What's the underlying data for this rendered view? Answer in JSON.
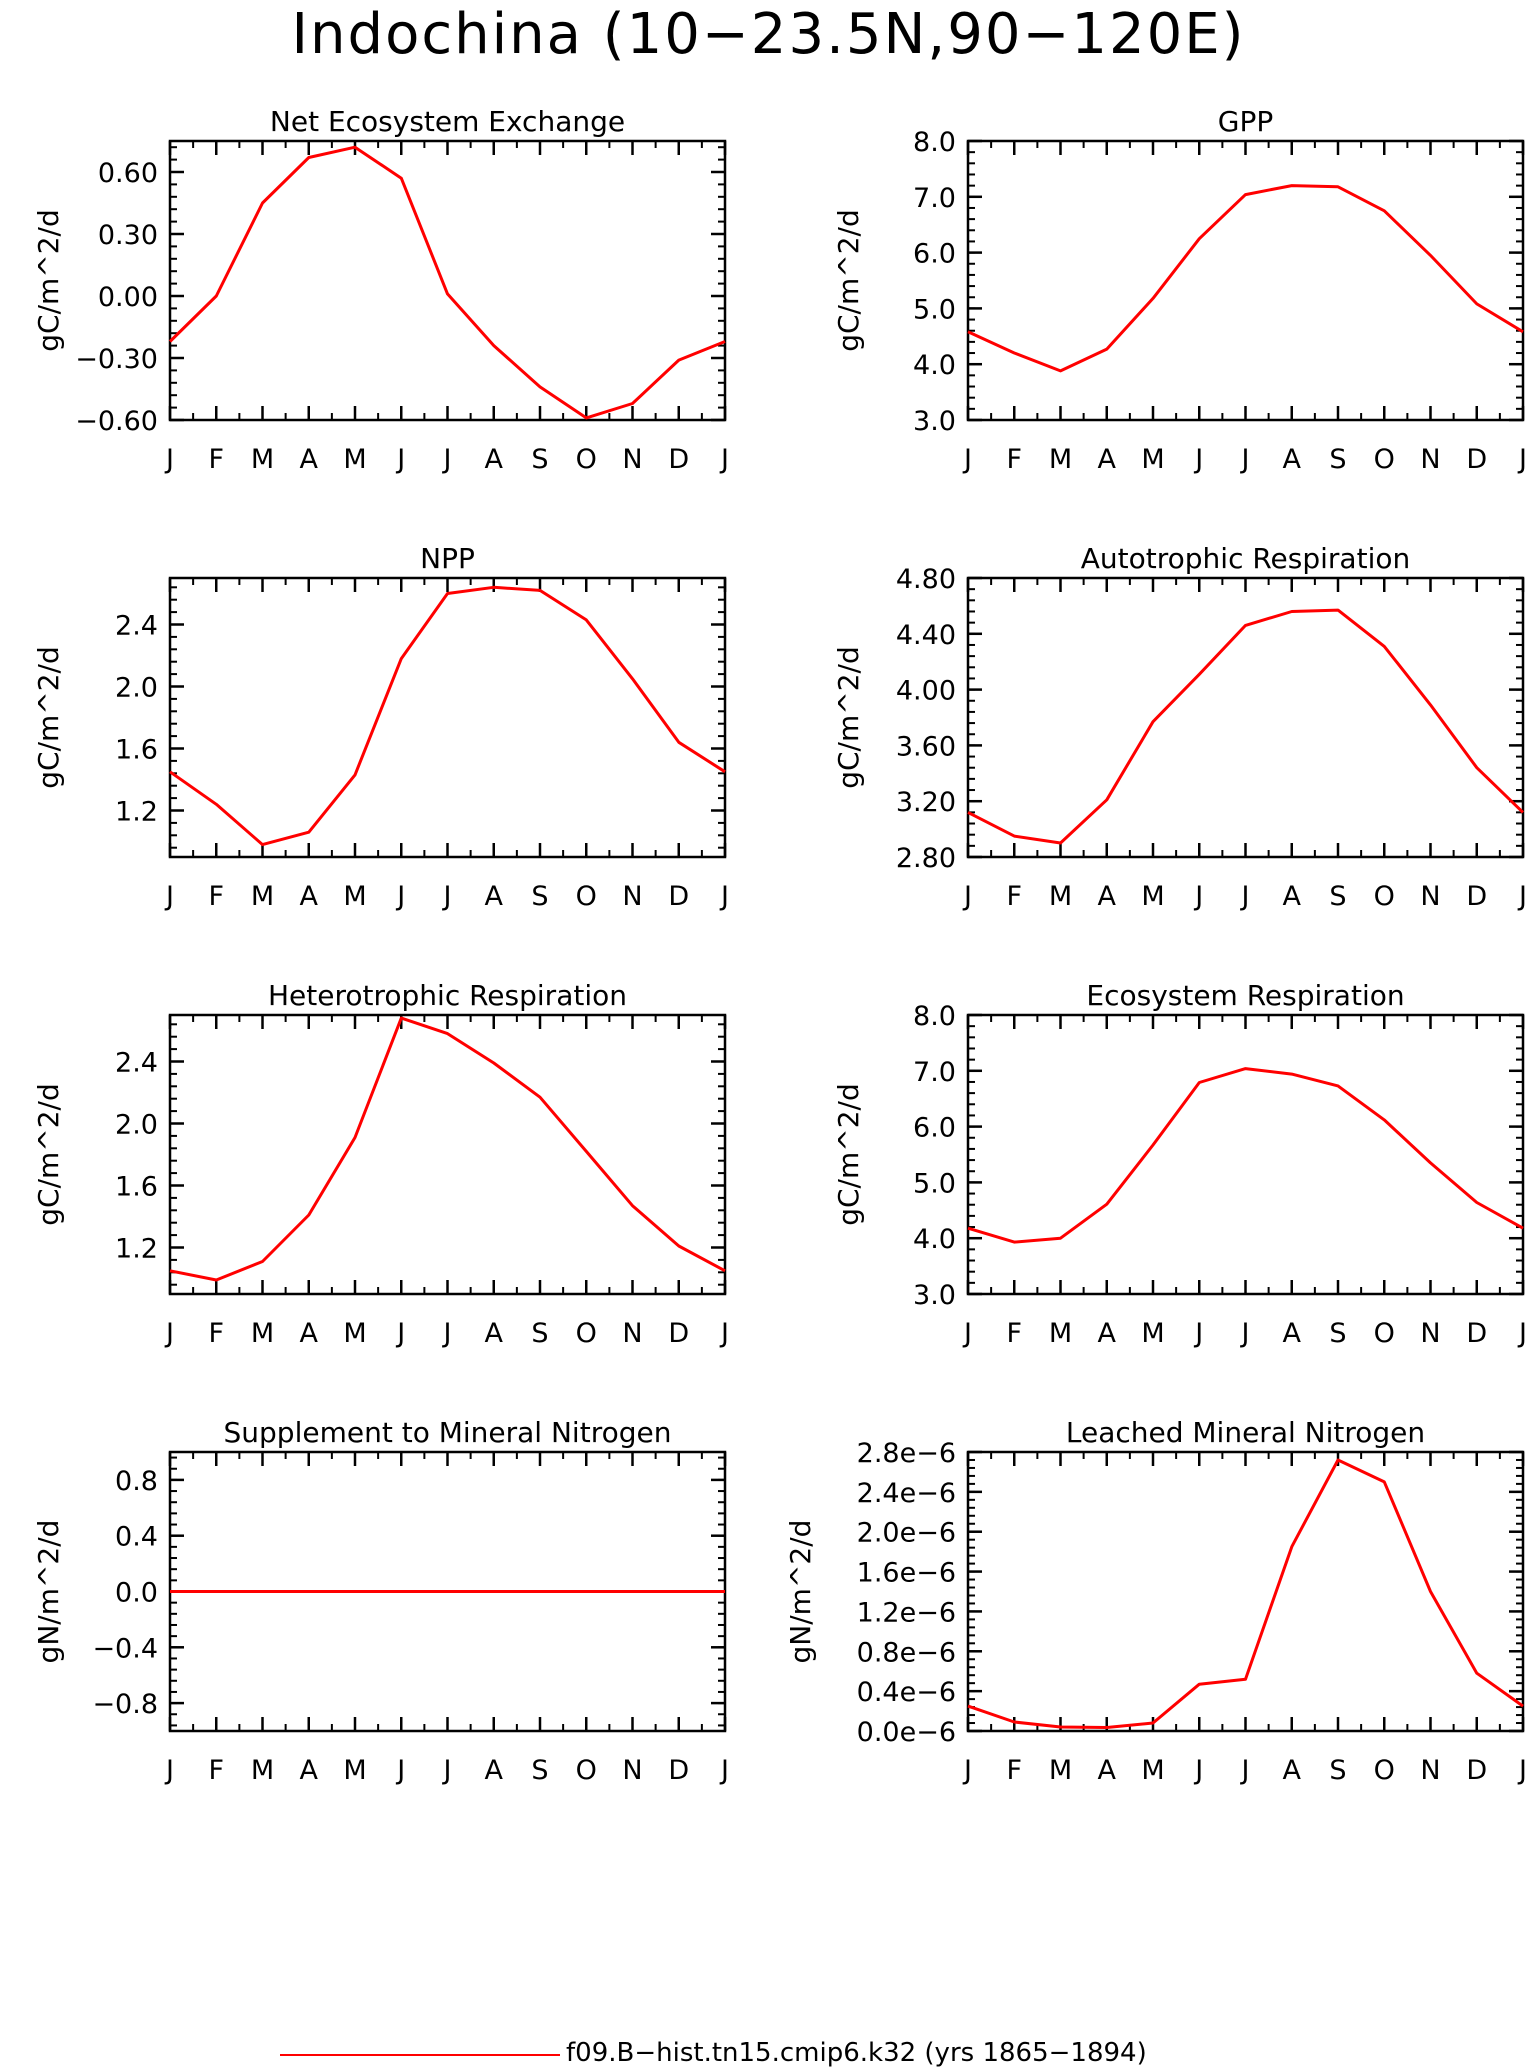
{
  "title": "Indochina (10−23.5N,90−120E)",
  "legend": {
    "label": "f09.B−hist.tn15.cmip6.k32 (yrs 1865−1894)",
    "color": "#ff0000"
  },
  "chart_data": [
    {
      "type": "line",
      "title": "Net Ecosystem Exchange",
      "ylabel": "gC/m^2/d",
      "categories": [
        "J",
        "F",
        "M",
        "A",
        "M",
        "J",
        "J",
        "A",
        "S",
        "O",
        "N",
        "D",
        "J"
      ],
      "ylim": [
        -0.6,
        0.75
      ],
      "yticks": [
        -0.6,
        -0.3,
        0.0,
        0.3,
        0.6
      ],
      "ytick_labels": [
        "−0.60",
        "−0.30",
        "0.00",
        "0.30",
        "0.60"
      ],
      "series": [
        {
          "values": [
            -0.22,
            -0.0,
            0.45,
            0.67,
            0.72,
            0.57,
            0.01,
            -0.24,
            -0.44,
            -0.59,
            -0.52,
            -0.31,
            -0.22
          ]
        }
      ]
    },
    {
      "type": "line",
      "title": "GPP",
      "ylabel": "gC/m^2/d",
      "categories": [
        "J",
        "F",
        "M",
        "A",
        "M",
        "J",
        "J",
        "A",
        "S",
        "O",
        "N",
        "D",
        "J"
      ],
      "ylim": [
        3.0,
        8.0
      ],
      "yticks": [
        3.0,
        4.0,
        5.0,
        6.0,
        7.0,
        8.0
      ],
      "ytick_labels": [
        "3.0",
        "4.0",
        "5.0",
        "6.0",
        "7.0",
        "8.0"
      ],
      "series": [
        {
          "values": [
            4.58,
            4.2,
            3.88,
            4.27,
            5.18,
            6.25,
            7.04,
            7.2,
            7.18,
            6.75,
            5.95,
            5.08,
            4.58
          ]
        }
      ]
    },
    {
      "type": "line",
      "title": "NPP",
      "ylabel": "gC/m^2/d",
      "categories": [
        "J",
        "F",
        "M",
        "A",
        "M",
        "J",
        "J",
        "A",
        "S",
        "O",
        "N",
        "D",
        "J"
      ],
      "ylim": [
        0.9,
        2.7
      ],
      "yticks": [
        1.2,
        1.6,
        2.0,
        2.4
      ],
      "ytick_labels": [
        "1.2",
        "1.6",
        "2.0",
        "2.4"
      ],
      "series": [
        {
          "values": [
            1.45,
            1.24,
            0.98,
            1.06,
            1.43,
            2.18,
            2.6,
            2.64,
            2.62,
            2.43,
            2.05,
            1.64,
            1.45
          ]
        }
      ]
    },
    {
      "type": "line",
      "title": "Autotrophic Respiration",
      "ylabel": "gC/m^2/d",
      "categories": [
        "J",
        "F",
        "M",
        "A",
        "M",
        "J",
        "J",
        "A",
        "S",
        "O",
        "N",
        "D",
        "J"
      ],
      "ylim": [
        2.8,
        4.8
      ],
      "yticks": [
        2.8,
        3.2,
        3.6,
        4.0,
        4.4,
        4.8
      ],
      "ytick_labels": [
        "2.80",
        "3.20",
        "3.60",
        "4.00",
        "4.40",
        "4.80"
      ],
      "series": [
        {
          "values": [
            3.12,
            2.95,
            2.9,
            3.21,
            3.77,
            4.11,
            4.46,
            4.56,
            4.57,
            4.31,
            3.89,
            3.44,
            3.12
          ]
        }
      ]
    },
    {
      "type": "line",
      "title": "Heterotrophic Respiration",
      "ylabel": "gC/m^2/d",
      "categories": [
        "J",
        "F",
        "M",
        "A",
        "M",
        "J",
        "J",
        "A",
        "S",
        "O",
        "N",
        "D",
        "J"
      ],
      "ylim": [
        0.9,
        2.7
      ],
      "yticks": [
        1.2,
        1.6,
        2.0,
        2.4
      ],
      "ytick_labels": [
        "1.2",
        "1.6",
        "2.0",
        "2.4"
      ],
      "series": [
        {
          "values": [
            1.05,
            0.99,
            1.11,
            1.41,
            1.91,
            2.68,
            2.58,
            2.39,
            2.17,
            1.82,
            1.47,
            1.21,
            1.05
          ]
        }
      ]
    },
    {
      "type": "line",
      "title": "Ecosystem Respiration",
      "ylabel": "gC/m^2/d",
      "categories": [
        "J",
        "F",
        "M",
        "A",
        "M",
        "J",
        "J",
        "A",
        "S",
        "O",
        "N",
        "D",
        "J"
      ],
      "ylim": [
        3.0,
        8.0
      ],
      "yticks": [
        3.0,
        4.0,
        5.0,
        6.0,
        7.0,
        8.0
      ],
      "ytick_labels": [
        "3.0",
        "4.0",
        "5.0",
        "6.0",
        "7.0",
        "8.0"
      ],
      "series": [
        {
          "values": [
            4.18,
            3.93,
            4.0,
            4.61,
            5.67,
            6.79,
            7.04,
            6.94,
            6.73,
            6.12,
            5.35,
            4.64,
            4.18
          ]
        }
      ]
    },
    {
      "type": "line",
      "title": "Supplement to Mineral Nitrogen",
      "ylabel": "gN/m^2/d",
      "categories": [
        "J",
        "F",
        "M",
        "A",
        "M",
        "J",
        "J",
        "A",
        "S",
        "O",
        "N",
        "D",
        "J"
      ],
      "ylim": [
        -1.0,
        1.0
      ],
      "yticks": [
        -0.8,
        -0.4,
        0.0,
        0.4,
        0.8
      ],
      "ytick_labels": [
        "−0.8",
        "−0.4",
        "0.0",
        "0.4",
        "0.8"
      ],
      "series": [
        {
          "values": [
            0,
            0,
            0,
            0,
            0,
            0,
            0,
            0,
            0,
            0,
            0,
            0,
            0
          ]
        }
      ]
    },
    {
      "type": "line",
      "title": "Leached Mineral Nitrogen",
      "ylabel": "gN/m^2/d",
      "categories": [
        "J",
        "F",
        "M",
        "A",
        "M",
        "J",
        "J",
        "A",
        "S",
        "O",
        "N",
        "D",
        "J"
      ],
      "ylim": [
        0.0,
        2.8e-06
      ],
      "yticks": [
        0.0,
        4e-07,
        8e-07,
        1.2e-06,
        1.6e-06,
        2e-06,
        2.4e-06,
        2.8e-06
      ],
      "ytick_labels": [
        "0.0e−6",
        "0.4e−6",
        "0.8e−6",
        "1.2e−6",
        "1.6e−6",
        "2.0e−6",
        "2.4e−6",
        "2.8e−6"
      ],
      "series": [
        {
          "values": [
            2.5e-07,
            9e-08,
            4e-08,
            3.5e-08,
            8e-08,
            4.7e-07,
            5.2e-07,
            1.85e-06,
            2.72e-06,
            2.5e-06,
            1.4e-06,
            5.8e-07,
            2.5e-07
          ]
        }
      ]
    }
  ]
}
